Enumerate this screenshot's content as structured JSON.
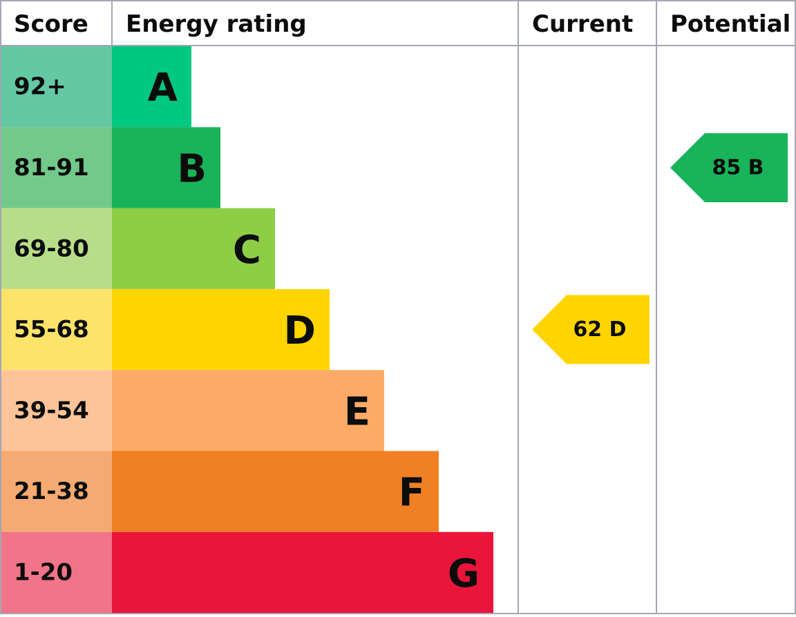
{
  "headers": [
    "Score",
    "Energy rating",
    "Current",
    "Potential"
  ],
  "bands": [
    {
      "score": "92+",
      "letter": "A",
      "score_color": "#64c8a4",
      "color": "#00c781"
    },
    {
      "score": "81-91",
      "letter": "B",
      "score_color": "#72c98a",
      "color": "#19b459"
    },
    {
      "score": "69-80",
      "letter": "C",
      "score_color": "#b8dd8a",
      "color": "#8dce46"
    },
    {
      "score": "55-68",
      "letter": "D",
      "score_color": "#fde36a",
      "color": "#ffd500"
    },
    {
      "score": "39-54",
      "letter": "E",
      "score_color": "#fdc49a",
      "color": "#fcaa65"
    },
    {
      "score": "21-38",
      "letter": "F",
      "score_color": "#f4aa72",
      "color": "#ef8023"
    },
    {
      "score": "1-20",
      "letter": "G",
      "score_color": "#f27488",
      "color": "#e9153b"
    }
  ],
  "current": {
    "label": "62 D",
    "color": "#ffd500"
  },
  "potential": {
    "label": "85 B",
    "color": "#19b459"
  }
}
